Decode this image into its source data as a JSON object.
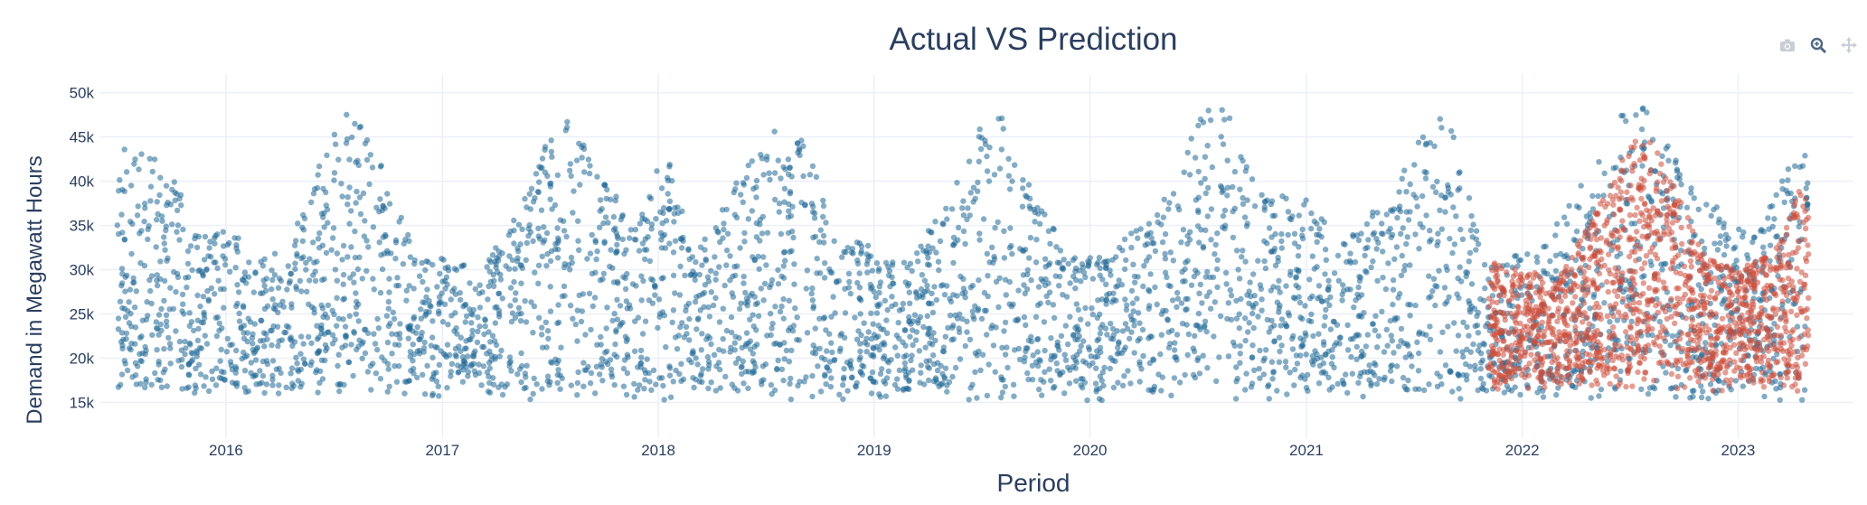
{
  "chart_data": {
    "type": "scatter",
    "title": "Actual VS Prediction",
    "xlabel": "Period",
    "ylabel": "Demand in Megawatt Hours",
    "xlim": [
      "2015-06-01",
      "2023-07-15"
    ],
    "ylim": [
      13000,
      51500
    ],
    "x_ticks": [
      "2016",
      "2017",
      "2018",
      "2019",
      "2020",
      "2021",
      "2022",
      "2023"
    ],
    "y_ticks": [
      "15k",
      "20k",
      "25k",
      "30k",
      "35k",
      "40k",
      "45k",
      "50k"
    ],
    "grid": true,
    "legend": "none",
    "series": [
      {
        "color": "#1f6895",
        "x_range": [
          "2015-07-01",
          "2023-04-30"
        ],
        "points": [
          [
            "2015-07-01",
            44000
          ],
          [
            "2015-08-01",
            44500
          ],
          [
            "2015-09-01",
            43500
          ],
          [
            "2015-10-01",
            40500
          ],
          [
            "2015-11-01",
            37000
          ],
          [
            "2015-12-01",
            34000
          ],
          [
            "2016-01-15",
            34500
          ],
          [
            "2016-03-01",
            31000
          ],
          [
            "2016-04-15",
            33000
          ],
          [
            "2016-06-01",
            41000
          ],
          [
            "2016-07-15",
            48000
          ],
          [
            "2016-08-15",
            47500
          ],
          [
            "2016-10-01",
            40000
          ],
          [
            "2016-11-15",
            32000
          ],
          [
            "2017-01-15",
            31500
          ],
          [
            "2017-03-01",
            30000
          ],
          [
            "2017-05-01",
            36000
          ],
          [
            "2017-07-15",
            47000
          ],
          [
            "2017-08-15",
            46500
          ],
          [
            "2017-10-01",
            40000
          ],
          [
            "2017-12-01",
            36000
          ],
          [
            "2018-01-15",
            44500
          ],
          [
            "2018-03-01",
            32000
          ],
          [
            "2018-05-15",
            40000
          ],
          [
            "2018-07-15",
            46000
          ],
          [
            "2018-09-01",
            45500
          ],
          [
            "2018-11-01",
            33000
          ],
          [
            "2019-01-01",
            33500
          ],
          [
            "2019-03-01",
            31000
          ],
          [
            "2019-05-15",
            39000
          ],
          [
            "2019-07-15",
            48500
          ],
          [
            "2019-08-15",
            47000
          ],
          [
            "2019-10-01",
            38000
          ],
          [
            "2019-12-01",
            31500
          ],
          [
            "2020-02-01",
            32000
          ],
          [
            "2020-04-15",
            36000
          ],
          [
            "2020-07-15",
            48500
          ],
          [
            "2020-09-01",
            48000
          ],
          [
            "2020-10-15",
            39000
          ],
          [
            "2021-01-01",
            38000
          ],
          [
            "2021-03-01",
            33000
          ],
          [
            "2021-05-15",
            38000
          ],
          [
            "2021-07-15",
            46000
          ],
          [
            "2021-09-01",
            48000
          ],
          [
            "2021-11-01",
            30000
          ],
          [
            "2022-02-01",
            33000
          ],
          [
            "2022-04-15",
            40000
          ],
          [
            "2022-07-01",
            49000
          ],
          [
            "2022-08-15",
            49000
          ],
          [
            "2022-10-01",
            40000
          ],
          [
            "2022-12-01",
            37000
          ],
          [
            "2023-02-01",
            34000
          ],
          [
            "2023-04-01",
            43000
          ]
        ],
        "y_min_approx": 15000
      },
      {
        "color": "#cc4c3b",
        "x_range": [
          "2021-11-05",
          "2023-04-30"
        ],
        "points": [
          [
            "2021-11-05",
            31000
          ],
          [
            "2022-01-01",
            30000
          ],
          [
            "2022-03-01",
            29000
          ],
          [
            "2022-05-01",
            36000
          ],
          [
            "2022-07-01",
            44000
          ],
          [
            "2022-08-01",
            45500
          ],
          [
            "2022-09-15",
            40000
          ],
          [
            "2022-11-01",
            32000
          ],
          [
            "2023-01-01",
            30000
          ],
          [
            "2023-03-01",
            32000
          ],
          [
            "2023-04-15",
            39000
          ]
        ],
        "y_min_approx": 16000
      }
    ]
  },
  "icons": [
    "camera-icon",
    "zoom-icon",
    "pan-icon"
  ]
}
